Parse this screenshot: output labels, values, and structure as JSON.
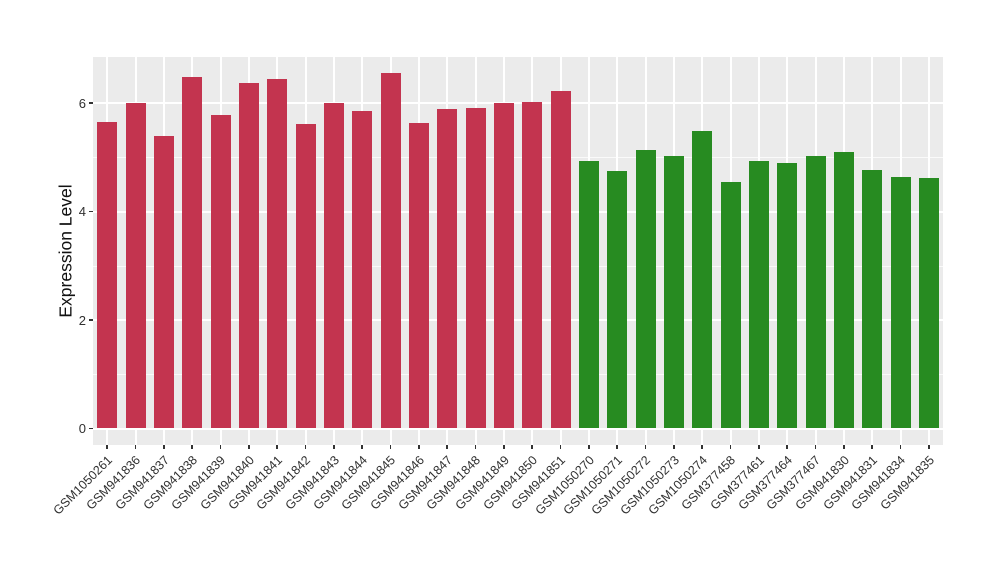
{
  "chart_data": {
    "type": "bar",
    "title": "",
    "xlabel": "",
    "ylabel": "Expression Level",
    "ylim": [
      0,
      6.85
    ],
    "yticks": [
      0,
      2,
      4,
      6
    ],
    "grid": "major and minor horizontal white gridlines plus vertical white gridline per category, ggplot-style grey panel",
    "legend": false,
    "panel_background": "#EBEBEB",
    "categories": [
      "GSM1050261",
      "GSM941836",
      "GSM941837",
      "GSM941838",
      "GSM941839",
      "GSM941840",
      "GSM941841",
      "GSM941842",
      "GSM941843",
      "GSM941844",
      "GSM941845",
      "GSM941846",
      "GSM941847",
      "GSM941848",
      "GSM941849",
      "GSM941850",
      "GSM941851",
      "GSM1050270",
      "GSM1050271",
      "GSM1050272",
      "GSM1050273",
      "GSM1050274",
      "GSM377458",
      "GSM377461",
      "GSM377464",
      "GSM377467",
      "GSM941830",
      "GSM941831",
      "GSM941834",
      "GSM941835"
    ],
    "values": [
      5.66,
      6.0,
      5.4,
      6.49,
      5.79,
      6.37,
      6.45,
      5.61,
      6.0,
      5.85,
      6.55,
      5.64,
      5.89,
      5.91,
      6.0,
      6.02,
      6.23,
      4.94,
      4.75,
      5.14,
      5.02,
      5.48,
      4.55,
      4.94,
      4.89,
      5.03,
      5.1,
      4.77,
      4.64,
      4.62
    ],
    "groups": [
      "red",
      "red",
      "red",
      "red",
      "red",
      "red",
      "red",
      "red",
      "red",
      "red",
      "red",
      "red",
      "red",
      "red",
      "red",
      "red",
      "red",
      "green",
      "green",
      "green",
      "green",
      "green",
      "green",
      "green",
      "green",
      "green",
      "green",
      "green",
      "green",
      "green"
    ],
    "group_colors": {
      "red": "#C3344F",
      "green": "#278B21"
    }
  }
}
